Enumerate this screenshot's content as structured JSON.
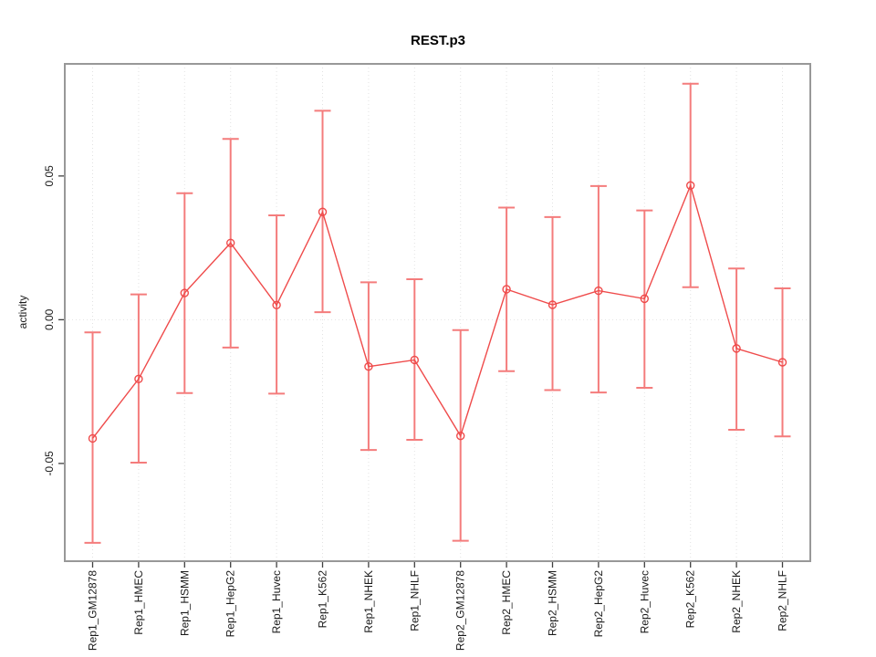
{
  "chart_data": {
    "type": "line",
    "title": "REST.p3",
    "xlabel": "",
    "ylabel": "activity",
    "categories": [
      "Rep1_GM12878",
      "Rep1_HMEC",
      "Rep1_HSMM",
      "Rep1_HepG2",
      "Rep1_Huvec",
      "Rep1_K562",
      "Rep1_NHEK",
      "Rep1_NHLF",
      "Rep2_GM12878",
      "Rep2_HMEC",
      "Rep2_HSMM",
      "Rep2_HepG2",
      "Rep2_Huvec",
      "Rep2_K562",
      "Rep2_NHEK",
      "Rep2_NHLF"
    ],
    "series": [
      {
        "name": "activity",
        "values": [
          -0.0413,
          -0.0206,
          0.0093,
          0.0267,
          0.0051,
          0.0375,
          -0.0163,
          -0.014,
          -0.0404,
          0.0106,
          0.0052,
          0.0101,
          0.0073,
          0.0467,
          -0.01,
          -0.0148
        ],
        "error_upper": [
          -0.0044,
          0.0088,
          0.044,
          0.0629,
          0.0363,
          0.0727,
          0.013,
          0.0141,
          -0.0036,
          0.039,
          0.0357,
          0.0465,
          0.038,
          0.0821,
          0.0178,
          0.0109
        ],
        "error_lower": [
          -0.0776,
          -0.0497,
          -0.0255,
          -0.0097,
          -0.0257,
          0.0026,
          -0.0453,
          -0.0418,
          -0.0769,
          -0.0179,
          -0.0245,
          -0.0253,
          -0.0237,
          0.0113,
          -0.0383,
          -0.0406
        ]
      }
    ],
    "yticks": [
      {
        "value": -0.05,
        "label": "-0.05"
      },
      {
        "value": 0.0,
        "label": "0.00"
      },
      {
        "value": 0.05,
        "label": "0.05"
      }
    ],
    "ylim": [
      -0.084,
      0.089
    ],
    "grid": {
      "vertical_dotted_per_category": true,
      "horizontal_dotted_at_zero": true
    },
    "legend": "none",
    "colors": {
      "series_line": "#ef4b4b",
      "error_bar": "#f47c7c",
      "grid_line": "#e2e2e2",
      "axis_box": "#989898",
      "tick_mark": "#3f3f3f",
      "tick_text": "#1a1a1a"
    }
  }
}
